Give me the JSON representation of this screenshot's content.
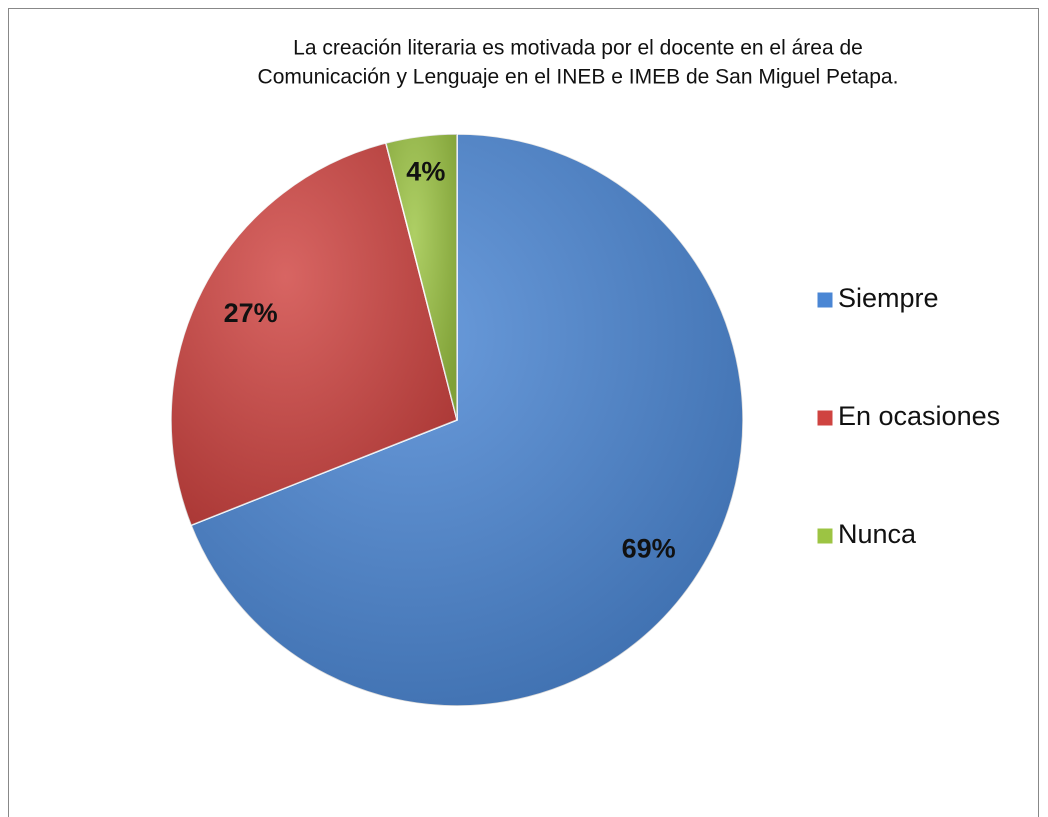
{
  "chart_data": {
    "type": "pie",
    "title": [
      "La creación literaria es motivada por el docente en el área de",
      "Comunicación y Lenguaje en el INEB e IMEB de San Miguel Petapa."
    ],
    "categories": [
      "Siempre",
      "En ocasiones",
      "Nunca"
    ],
    "values": [
      69,
      27,
      4
    ],
    "value_labels": [
      "69%",
      "27%",
      "4%"
    ],
    "colors": [
      "#4a86d4",
      "#cf4340",
      "#9cc443"
    ],
    "legend": "right"
  }
}
